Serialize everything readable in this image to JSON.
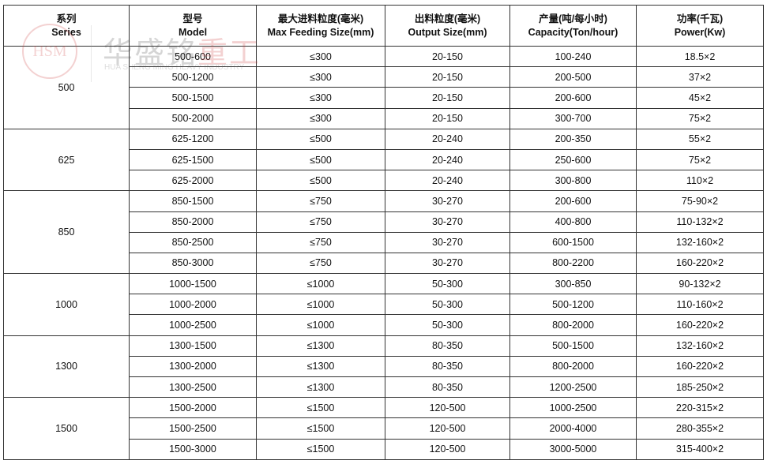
{
  "headers": [
    {
      "cn": "系列",
      "en": "Series"
    },
    {
      "cn": "型号",
      "en": "Model"
    },
    {
      "cn": "最大进料粒度(毫米)",
      "en": "Max Feeding Size(mm)"
    },
    {
      "cn": "出料粒度(毫米)",
      "en": "Output Size(mm)"
    },
    {
      "cn": "产量(吨/每小时)",
      "en": "Capacity(Ton/hour)"
    },
    {
      "cn": "功率(千瓦)",
      "en": "Power(Kw)"
    }
  ],
  "groups": [
    {
      "series": "500",
      "rows": [
        [
          "500-600",
          "≤300",
          "20-150",
          "100-240",
          "18.5×2"
        ],
        [
          "500-1200",
          "≤300",
          "20-150",
          "200-500",
          "37×2"
        ],
        [
          "500-1500",
          "≤300",
          "20-150",
          "200-600",
          "45×2"
        ],
        [
          "500-2000",
          "≤300",
          "20-150",
          "300-700",
          "75×2"
        ]
      ]
    },
    {
      "series": "625",
      "rows": [
        [
          "625-1200",
          "≤500",
          "20-240",
          "200-350",
          "55×2"
        ],
        [
          "625-1500",
          "≤500",
          "20-240",
          "250-600",
          "75×2"
        ],
        [
          "625-2000",
          "≤500",
          "20-240",
          "300-800",
          "110×2"
        ]
      ]
    },
    {
      "series": "850",
      "rows": [
        [
          "850-1500",
          "≤750",
          "30-270",
          "200-600",
          "75-90×2"
        ],
        [
          "850-2000",
          "≤750",
          "30-270",
          "400-800",
          "110-132×2"
        ],
        [
          "850-2500",
          "≤750",
          "30-270",
          "600-1500",
          "132-160×2"
        ],
        [
          "850-3000",
          "≤750",
          "30-270",
          "800-2200",
          "160-220×2"
        ]
      ]
    },
    {
      "series": "1000",
      "rows": [
        [
          "1000-1500",
          "≤1000",
          "50-300",
          "300-850",
          "90-132×2"
        ],
        [
          "1000-2000",
          "≤1000",
          "50-300",
          "500-1200",
          "110-160×2"
        ],
        [
          "1000-2500",
          "≤1000",
          "50-300",
          "800-2000",
          "160-220×2"
        ]
      ]
    },
    {
      "series": "1300",
      "rows": [
        [
          "1300-1500",
          "≤1300",
          "80-350",
          "500-1500",
          "132-160×2"
        ],
        [
          "1300-2000",
          "≤1300",
          "80-350",
          "800-2000",
          "160-220×2"
        ],
        [
          "1300-2500",
          "≤1300",
          "80-350",
          "1200-2500",
          "185-250×2"
        ]
      ]
    },
    {
      "series": "1500",
      "rows": [
        [
          "1500-2000",
          "≤1500",
          "120-500",
          "1000-2500",
          "220-315×2"
        ],
        [
          "1500-2500",
          "≤1500",
          "120-500",
          "2000-4000",
          "280-355×2"
        ],
        [
          "1500-3000",
          "≤1500",
          "120-500",
          "3000-5000",
          "315-400×2"
        ]
      ]
    }
  ],
  "watermark": {
    "logo": "HSM",
    "cn_main": "华盛铭",
    "cn_accent": "重工",
    "en": "HUA SHENG MING HEAVY INDUSTRY"
  }
}
